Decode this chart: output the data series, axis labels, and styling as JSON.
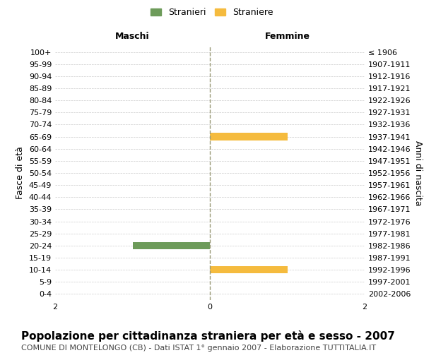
{
  "age_groups": [
    "0-4",
    "5-9",
    "10-14",
    "15-19",
    "20-24",
    "25-29",
    "30-34",
    "35-39",
    "40-44",
    "45-49",
    "50-54",
    "55-59",
    "60-64",
    "65-69",
    "70-74",
    "75-79",
    "80-84",
    "85-89",
    "90-94",
    "95-99",
    "100+"
  ],
  "birth_years": [
    "2002-2006",
    "1997-2001",
    "1992-1996",
    "1987-1991",
    "1982-1986",
    "1977-1981",
    "1972-1976",
    "1967-1971",
    "1962-1966",
    "1957-1961",
    "1952-1956",
    "1947-1951",
    "1942-1946",
    "1937-1941",
    "1932-1936",
    "1927-1931",
    "1922-1926",
    "1917-1921",
    "1912-1916",
    "1907-1911",
    "≤ 1906"
  ],
  "males": [
    0,
    0,
    0,
    0,
    -1,
    0,
    0,
    0,
    0,
    0,
    0,
    0,
    0,
    0,
    0,
    0,
    0,
    0,
    0,
    0,
    0
  ],
  "females": [
    0,
    0,
    1,
    0,
    0,
    0,
    0,
    0,
    0,
    0,
    0,
    0,
    0,
    1,
    0,
    0,
    0,
    0,
    0,
    0,
    0
  ],
  "male_color": "#6d9b5a",
  "female_color": "#f5bb3e",
  "xlim": [
    -2,
    2
  ],
  "xticks": [
    -2,
    0,
    2
  ],
  "xlabel_left": "Maschi",
  "xlabel_right": "Femmine",
  "ylabel_left": "Fasce di età",
  "ylabel_right": "Anni di nascita",
  "legend_male": "Stranieri",
  "legend_female": "Straniere",
  "title": "Popolazione per cittadinanza straniera per età e sesso - 2007",
  "subtitle": "COMUNE DI MONTELONGO (CB) - Dati ISTAT 1° gennaio 2007 - Elaborazione TUTTITALIA.IT",
  "bg_color": "#ffffff",
  "grid_color": "#cccccc",
  "center_line_color": "#999977",
  "title_fontsize": 11,
  "subtitle_fontsize": 8,
  "axis_label_fontsize": 9,
  "tick_fontsize": 8,
  "legend_fontsize": 9
}
